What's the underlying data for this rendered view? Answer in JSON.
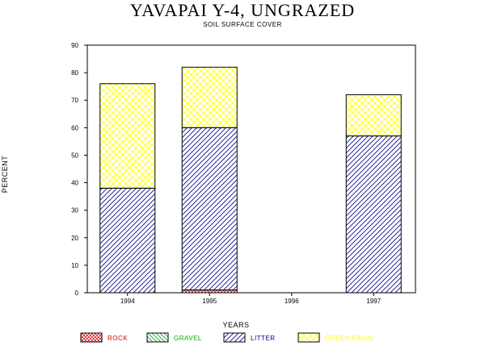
{
  "chart_data": {
    "type": "bar",
    "stacked": true,
    "title": "YAVAPAI Y-4, UNGRAZED",
    "subtitle": "SOIL SURFACE COVER",
    "xlabel": "YEARS",
    "ylabel": "PERCENT",
    "ylim": [
      0,
      90
    ],
    "yticks": [
      0,
      10,
      20,
      30,
      40,
      50,
      60,
      70,
      80,
      90
    ],
    "categories": [
      "1994",
      "1995",
      "1996",
      "1997"
    ],
    "series": [
      {
        "name": "ROCK",
        "values": [
          0,
          1,
          0,
          0
        ],
        "color": "#cc0000",
        "pattern": "crosshatch"
      },
      {
        "name": "GRAVEL",
        "values": [
          0,
          0,
          0,
          0
        ],
        "color": "#00aa00",
        "pattern": "diagonal-back"
      },
      {
        "name": "LITTER",
        "values": [
          38,
          59,
          0,
          57
        ],
        "color": "#00008b",
        "pattern": "diagonal"
      },
      {
        "name": "GREEN BASAL",
        "values": [
          38,
          22,
          0,
          15
        ],
        "color": "#ffff00",
        "pattern": "crosshatch"
      }
    ],
    "legend_position": "bottom",
    "grid": false
  }
}
